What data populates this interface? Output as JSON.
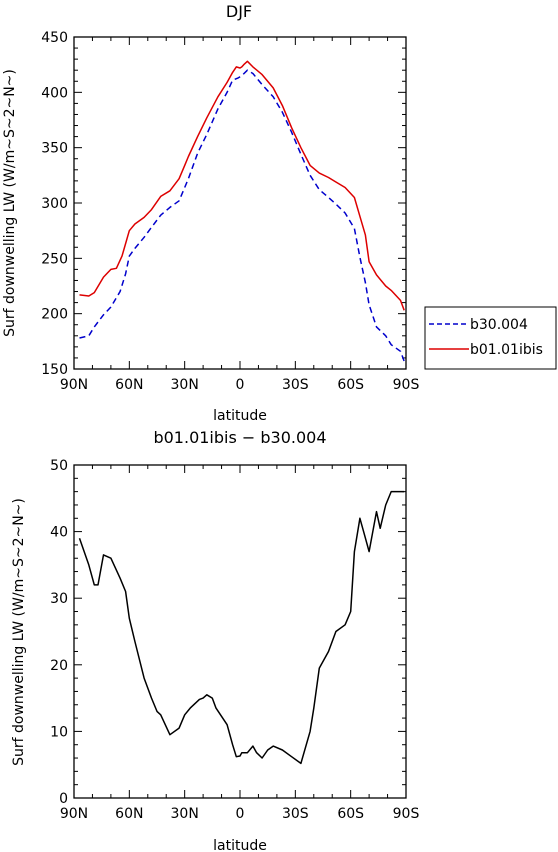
{
  "chart_data": [
    {
      "type": "line",
      "title": "DJF",
      "xlabel": "latitude",
      "ylabel": "Surf downwelling LW (W/m~S~2~N~)",
      "xlim": [
        90,
        -90
      ],
      "ylim": [
        150,
        450
      ],
      "xticks": [
        90,
        60,
        30,
        0,
        -30,
        -60,
        -90
      ],
      "xtick_labels": [
        "90N",
        "60N",
        "30N",
        "0",
        "30S",
        "60S",
        "90S"
      ],
      "yticks": [
        150,
        200,
        250,
        300,
        350,
        400,
        450
      ],
      "ytick_labels": [
        "150",
        "200",
        "250",
        "300",
        "350",
        "400",
        "450"
      ],
      "legend_position": "right",
      "series": [
        {
          "name": "b30.004",
          "color": "#0000cc",
          "style": "dashed",
          "x": [
            87,
            82,
            79,
            74,
            70,
            65,
            62,
            60,
            57,
            52,
            48,
            43,
            38,
            33,
            28,
            23,
            18,
            12,
            7,
            4,
            1,
            -1,
            -4,
            -7,
            -12,
            -18,
            -23,
            -28,
            -33,
            -38,
            -43,
            -48,
            -52,
            -57,
            -62,
            -65,
            -68,
            -70,
            -74,
            -79,
            -82,
            -87,
            -89
          ],
          "y": [
            178,
            180,
            188,
            199,
            206,
            220,
            236,
            252,
            259,
            269,
            278,
            289,
            296,
            302,
            322,
            345,
            362,
            385,
            400,
            411,
            413,
            415,
            420,
            417,
            407,
            396,
            382,
            364,
            344,
            325,
            312,
            305,
            299,
            291,
            277,
            251,
            228,
            208,
            188,
            180,
            172,
            166,
            157
          ]
        },
        {
          "name": "b01.01ibis",
          "color": "#dd0000",
          "style": "solid",
          "x": [
            87,
            82,
            79,
            74,
            70,
            67,
            64,
            60,
            57,
            52,
            48,
            43,
            38,
            33,
            30,
            28,
            23,
            18,
            12,
            7,
            4,
            2,
            0,
            -1,
            -2,
            -4,
            -7,
            -12,
            -18,
            -23,
            -28,
            -33,
            -38,
            -43,
            -48,
            -52,
            -57,
            -62,
            -65,
            -68,
            -70,
            -74,
            -79,
            -82,
            -87,
            -89
          ],
          "y": [
            217,
            216,
            219,
            233,
            240,
            241,
            252,
            275,
            281,
            287,
            294,
            306,
            311,
            322,
            334,
            342,
            360,
            377,
            396,
            409,
            418,
            423,
            422,
            423,
            425,
            428,
            423,
            416,
            404,
            388,
            368,
            350,
            334,
            327,
            323,
            319,
            314,
            305,
            288,
            271,
            247,
            235,
            225,
            221,
            212,
            203
          ]
        }
      ]
    },
    {
      "type": "line",
      "title": "b01.01ibis − b30.004",
      "xlabel": "latitude",
      "ylabel": "Surf downwelling LW (W/m~S~2~N~)",
      "xlim": [
        90,
        -90
      ],
      "ylim": [
        0,
        50
      ],
      "xticks": [
        90,
        60,
        30,
        0,
        -30,
        -60,
        -90
      ],
      "xtick_labels": [
        "90N",
        "60N",
        "30N",
        "0",
        "30S",
        "60S",
        "90S"
      ],
      "yticks": [
        0,
        10,
        20,
        30,
        40,
        50
      ],
      "ytick_labels": [
        "0",
        "10",
        "20",
        "30",
        "40",
        "50"
      ],
      "series": [
        {
          "color": "#000000",
          "style": "solid",
          "x": [
            87,
            82,
            79,
            77,
            74,
            70,
            65,
            62,
            60,
            57,
            52,
            48,
            45,
            43,
            38,
            33,
            30,
            27,
            22,
            20,
            18,
            15,
            13,
            7,
            4,
            2,
            0,
            -1,
            -4,
            -7,
            -9,
            -12,
            -15,
            -18,
            -23,
            -28,
            -33,
            -38,
            -40,
            -43,
            -48,
            -52,
            -57,
            -60,
            -62,
            -65,
            -67,
            -70,
            -74,
            -76,
            -79,
            -82,
            -85,
            -89
          ],
          "y": [
            39,
            35,
            32,
            32,
            36.5,
            36,
            33,
            31,
            27,
            23.5,
            18,
            15,
            13,
            12.5,
            9.5,
            10.5,
            12.5,
            13.5,
            14.8,
            15,
            15.5,
            15,
            13.5,
            11,
            8,
            6.2,
            6.3,
            6.8,
            6.8,
            7.8,
            6.8,
            6,
            7.2,
            7.8,
            7.2,
            6.2,
            5.2,
            10,
            13.5,
            19.5,
            22,
            25,
            26,
            28,
            37,
            42,
            40,
            37,
            43,
            40.5,
            44,
            46,
            46,
            46
          ]
        }
      ]
    }
  ]
}
